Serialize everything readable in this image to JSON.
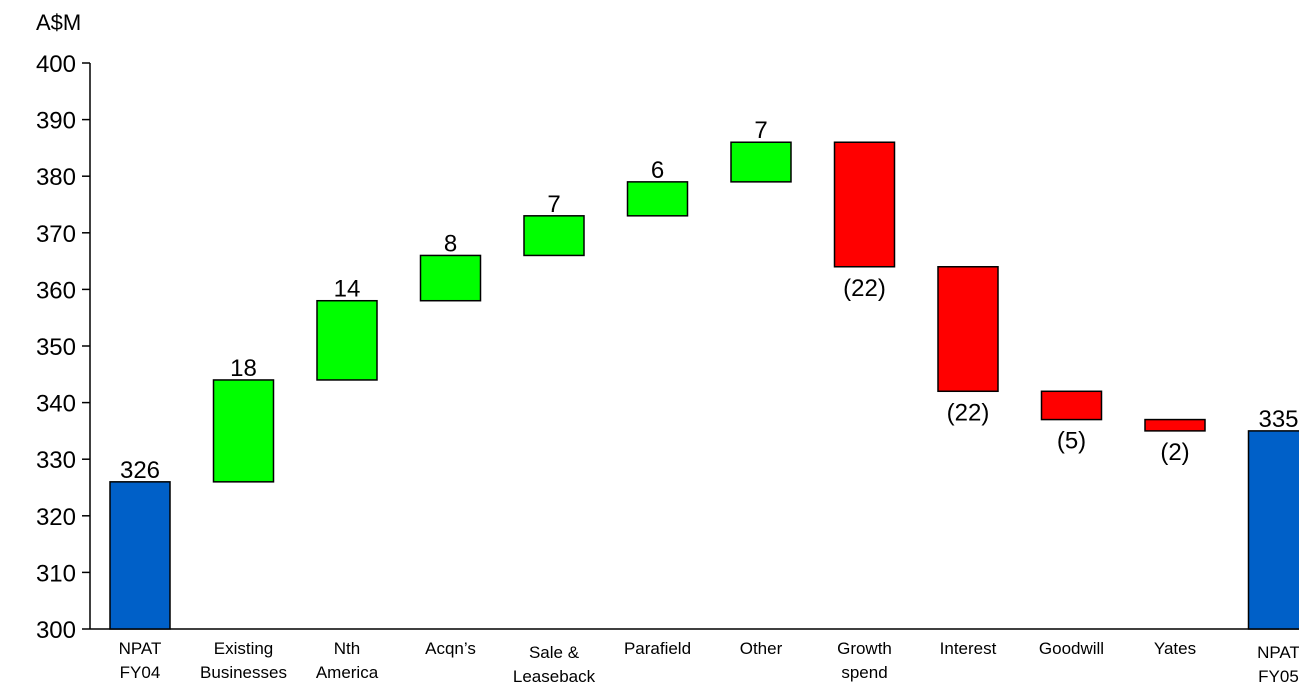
{
  "chart_data": {
    "type": "bar",
    "variant": "waterfall",
    "ylabel": "A$M",
    "ylim": [
      300,
      400
    ],
    "y_ticks": [
      "300",
      "310",
      "320",
      "330",
      "340",
      "350",
      "360",
      "370",
      "380",
      "390",
      "400"
    ],
    "grid": false,
    "legend": "none",
    "categories": [
      [
        "NPAT",
        "FY04"
      ],
      [
        "Existing",
        "Businesses"
      ],
      [
        "Nth",
        "America"
      ],
      [
        "Acqn’s"
      ],
      [
        "Sale &",
        "Leaseback"
      ],
      [
        "Parafield"
      ],
      [
        "Other"
      ],
      [
        "Growth",
        "spend"
      ],
      [
        "Interest"
      ],
      [
        "Goodwill"
      ],
      [
        "Yates"
      ],
      [
        "NPAT",
        "FY05"
      ]
    ],
    "bars": [
      {
        "kind": "total",
        "start": 300,
        "end": 326,
        "label": "326"
      },
      {
        "kind": "increase",
        "start": 326,
        "end": 344,
        "label": "18"
      },
      {
        "kind": "increase",
        "start": 344,
        "end": 358,
        "label": "14"
      },
      {
        "kind": "increase",
        "start": 358,
        "end": 366,
        "label": "8"
      },
      {
        "kind": "increase",
        "start": 366,
        "end": 373,
        "label": "7"
      },
      {
        "kind": "increase",
        "start": 373,
        "end": 379,
        "label": "6"
      },
      {
        "kind": "increase",
        "start": 379,
        "end": 386,
        "label": "7"
      },
      {
        "kind": "decrease",
        "start": 386,
        "end": 364,
        "label": "(22)"
      },
      {
        "kind": "decrease",
        "start": 364,
        "end": 342,
        "label": "(22)"
      },
      {
        "kind": "decrease",
        "start": 342,
        "end": 337,
        "label": "(5)"
      },
      {
        "kind": "decrease",
        "start": 337,
        "end": 335,
        "label": "(2)"
      },
      {
        "kind": "total",
        "start": 300,
        "end": 335,
        "label": "335"
      }
    ],
    "colors": {
      "total": "#0060c8",
      "increase": "#00ff00",
      "decrease": "#ff0000"
    }
  }
}
